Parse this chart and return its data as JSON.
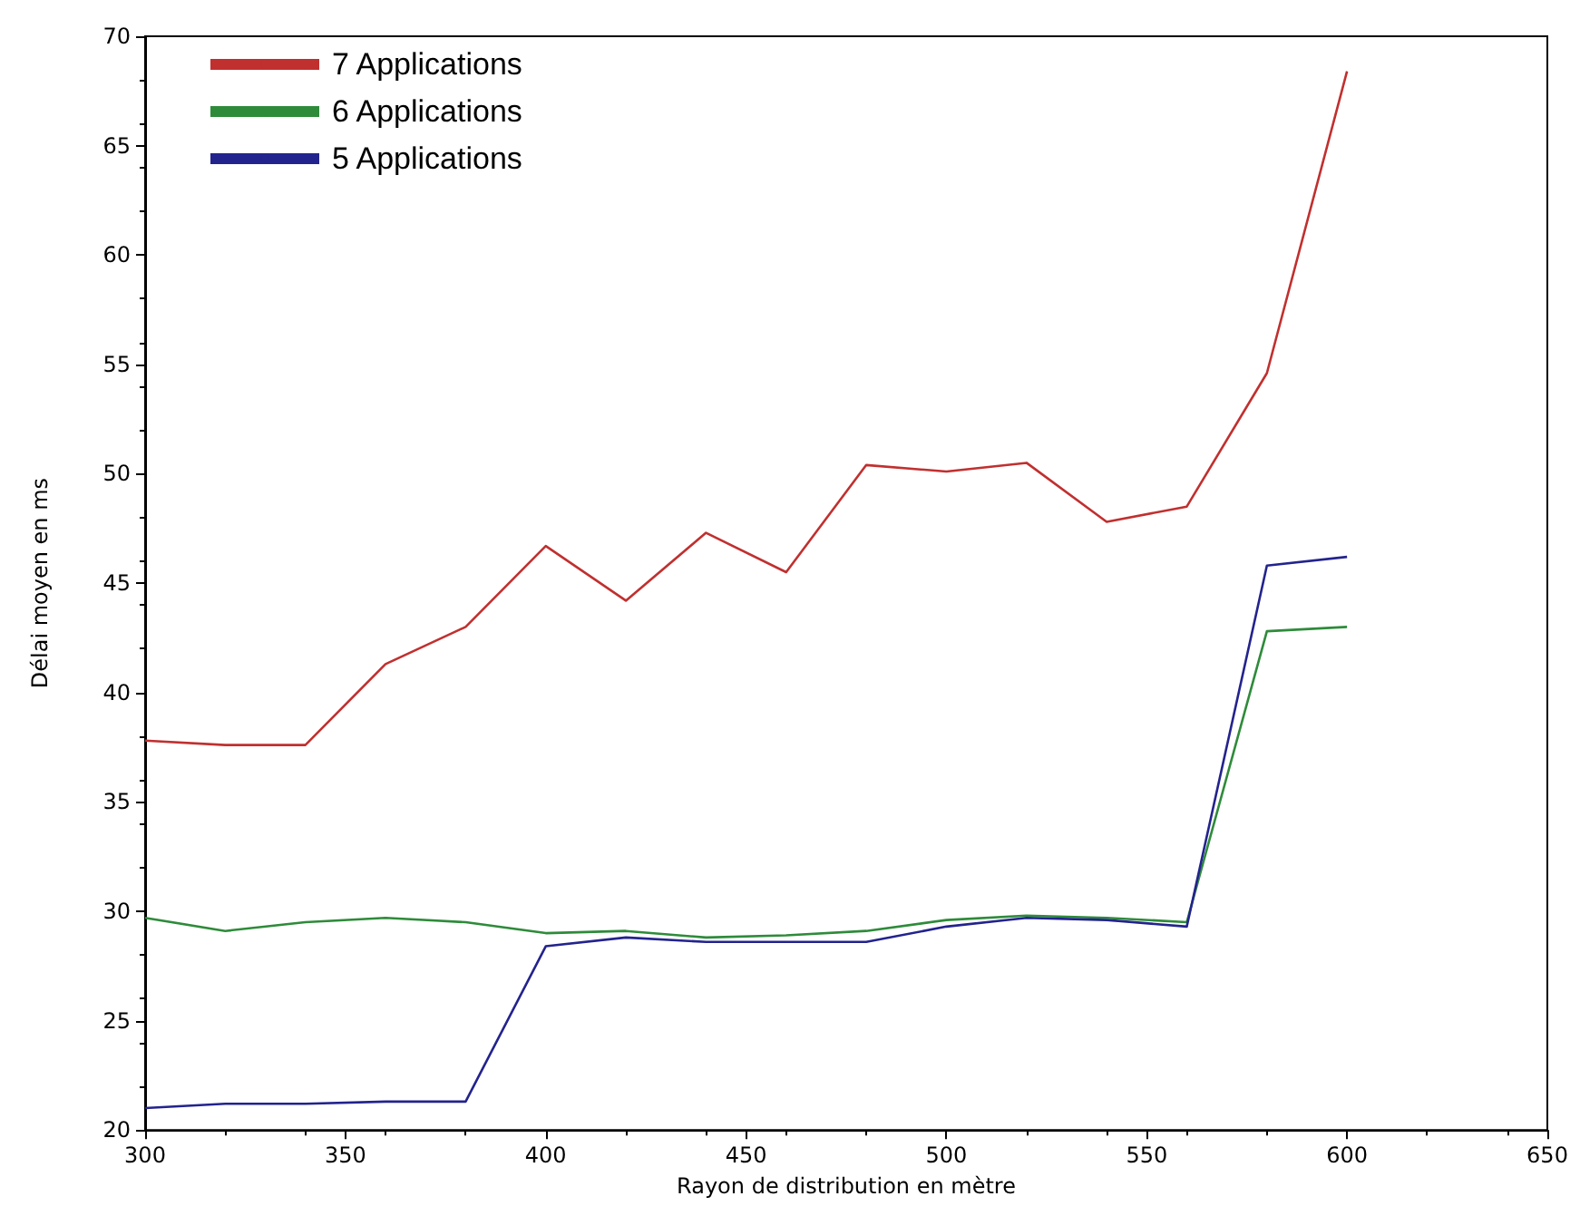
{
  "chart_data": {
    "type": "line",
    "xlabel": "Rayon de distribution en mètre",
    "ylabel": "Délai moyen en ms",
    "x": [
      300,
      320,
      340,
      360,
      380,
      400,
      420,
      440,
      460,
      480,
      500,
      520,
      540,
      560,
      580,
      600
    ],
    "series": [
      {
        "name": "7 Applications",
        "color": "#c0302f",
        "values": [
          37.8,
          37.6,
          37.6,
          41.3,
          43.0,
          46.7,
          44.2,
          47.3,
          45.5,
          50.4,
          50.1,
          50.5,
          47.8,
          48.5,
          54.6,
          68.4
        ]
      },
      {
        "name": "6 Applications",
        "color": "#2e8b3a",
        "values": [
          29.7,
          29.1,
          29.5,
          29.7,
          29.5,
          29.0,
          29.1,
          28.8,
          28.9,
          29.1,
          29.6,
          29.8,
          29.7,
          29.5,
          42.8,
          43.0
        ]
      },
      {
        "name": "5 Applications",
        "color": "#23238e",
        "values": [
          21.0,
          21.2,
          21.2,
          21.3,
          21.3,
          28.4,
          28.8,
          28.6,
          28.6,
          28.6,
          29.3,
          29.7,
          29.6,
          29.3,
          45.8,
          46.2
        ]
      }
    ],
    "xlim": [
      300,
      650
    ],
    "xticks": [
      300,
      350,
      400,
      450,
      500,
      550,
      600,
      650
    ],
    "ylim": [
      20,
      70
    ],
    "yticks": [
      20,
      25,
      30,
      35,
      40,
      45,
      50,
      55,
      60,
      65,
      70
    ],
    "grid": false,
    "legend": "top left",
    "marker": "none",
    "line_style": "solid"
  }
}
